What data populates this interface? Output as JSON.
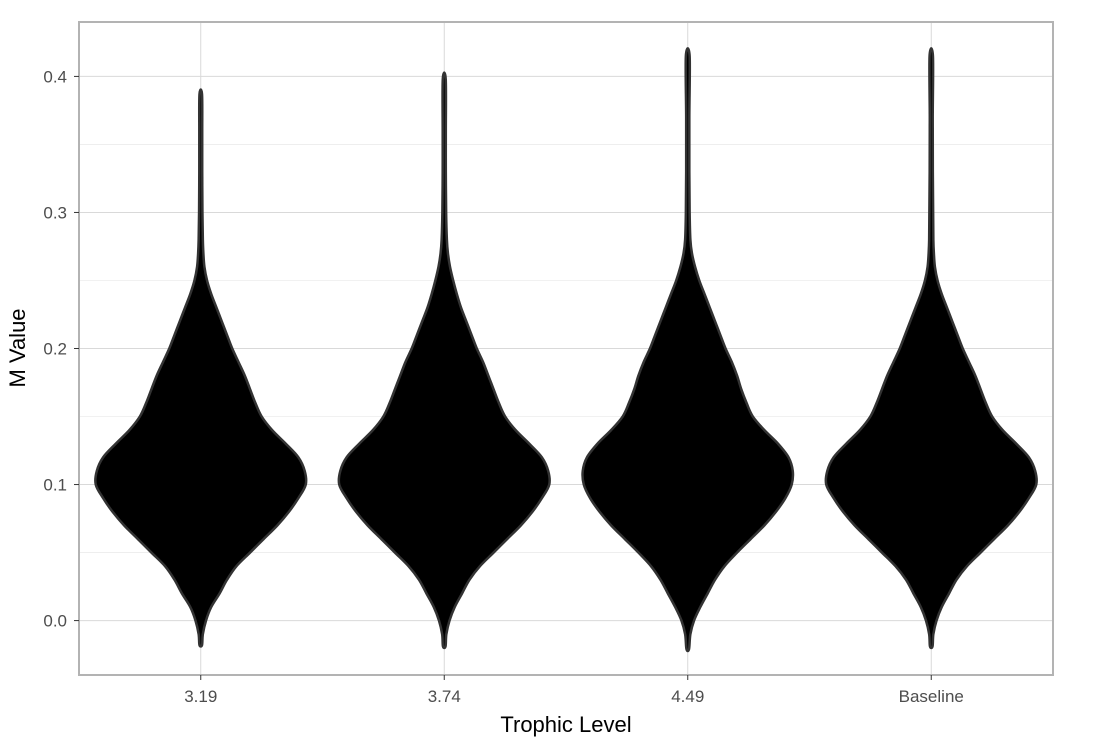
{
  "chart_data": {
    "type": "violin",
    "xlabel": "Trophic Level",
    "ylabel": "M  Value",
    "ylim": [
      -0.04,
      0.44
    ],
    "yticks": [
      0.0,
      0.1,
      0.2,
      0.3,
      0.4
    ],
    "ytick_labels": [
      "0.0",
      "0.1",
      "0.2",
      "0.3",
      "0.4"
    ],
    "categories": [
      "3.19",
      "3.74",
      "4.49",
      "Baseline"
    ],
    "fill_color": "#000000",
    "outline_color": "#333333",
    "grid": true,
    "legend": "none",
    "violins": [
      {
        "category": "3.19",
        "min": -0.018,
        "max": 0.387,
        "density": [
          [
            -0.018,
            0.005
          ],
          [
            -0.01,
            0.02
          ],
          [
            0.0,
            0.05
          ],
          [
            0.01,
            0.1
          ],
          [
            0.02,
            0.18
          ],
          [
            0.03,
            0.25
          ],
          [
            0.04,
            0.34
          ],
          [
            0.05,
            0.47
          ],
          [
            0.06,
            0.6
          ],
          [
            0.07,
            0.73
          ],
          [
            0.08,
            0.84
          ],
          [
            0.09,
            0.93
          ],
          [
            0.1,
            1.0
          ],
          [
            0.11,
            0.99
          ],
          [
            0.12,
            0.93
          ],
          [
            0.13,
            0.81
          ],
          [
            0.14,
            0.68
          ],
          [
            0.15,
            0.58
          ],
          [
            0.16,
            0.52
          ],
          [
            0.17,
            0.47
          ],
          [
            0.18,
            0.42
          ],
          [
            0.19,
            0.36
          ],
          [
            0.2,
            0.3
          ],
          [
            0.21,
            0.25
          ],
          [
            0.22,
            0.2
          ],
          [
            0.23,
            0.15
          ],
          [
            0.24,
            0.1
          ],
          [
            0.25,
            0.06
          ],
          [
            0.26,
            0.035
          ],
          [
            0.27,
            0.025
          ],
          [
            0.28,
            0.02
          ],
          [
            0.3,
            0.016
          ],
          [
            0.33,
            0.014
          ],
          [
            0.36,
            0.014
          ],
          [
            0.387,
            0.012
          ]
        ]
      },
      {
        "category": "3.74",
        "min": -0.019,
        "max": 0.398,
        "density": [
          [
            -0.019,
            0.005
          ],
          [
            -0.01,
            0.02
          ],
          [
            0.0,
            0.05
          ],
          [
            0.01,
            0.1
          ],
          [
            0.02,
            0.17
          ],
          [
            0.03,
            0.24
          ],
          [
            0.04,
            0.34
          ],
          [
            0.05,
            0.47
          ],
          [
            0.06,
            0.6
          ],
          [
            0.07,
            0.73
          ],
          [
            0.08,
            0.84
          ],
          [
            0.09,
            0.93
          ],
          [
            0.1,
            1.0
          ],
          [
            0.11,
            0.99
          ],
          [
            0.12,
            0.93
          ],
          [
            0.13,
            0.81
          ],
          [
            0.14,
            0.68
          ],
          [
            0.15,
            0.58
          ],
          [
            0.16,
            0.52
          ],
          [
            0.17,
            0.47
          ],
          [
            0.18,
            0.42
          ],
          [
            0.19,
            0.37
          ],
          [
            0.2,
            0.31
          ],
          [
            0.21,
            0.26
          ],
          [
            0.22,
            0.21
          ],
          [
            0.23,
            0.16
          ],
          [
            0.24,
            0.12
          ],
          [
            0.25,
            0.085
          ],
          [
            0.26,
            0.055
          ],
          [
            0.27,
            0.035
          ],
          [
            0.28,
            0.025
          ],
          [
            0.3,
            0.018
          ],
          [
            0.33,
            0.015
          ],
          [
            0.36,
            0.015
          ],
          [
            0.398,
            0.014
          ]
        ]
      },
      {
        "category": "4.49",
        "min": -0.021,
        "max": 0.415,
        "density": [
          [
            -0.021,
            0.005
          ],
          [
            -0.01,
            0.025
          ],
          [
            0.0,
            0.06
          ],
          [
            0.01,
            0.12
          ],
          [
            0.02,
            0.19
          ],
          [
            0.03,
            0.26
          ],
          [
            0.04,
            0.35
          ],
          [
            0.05,
            0.47
          ],
          [
            0.06,
            0.6
          ],
          [
            0.07,
            0.73
          ],
          [
            0.08,
            0.84
          ],
          [
            0.09,
            0.93
          ],
          [
            0.1,
            0.99
          ],
          [
            0.11,
            1.0
          ],
          [
            0.12,
            0.96
          ],
          [
            0.13,
            0.86
          ],
          [
            0.14,
            0.73
          ],
          [
            0.15,
            0.62
          ],
          [
            0.16,
            0.56
          ],
          [
            0.17,
            0.51
          ],
          [
            0.18,
            0.47
          ],
          [
            0.19,
            0.42
          ],
          [
            0.2,
            0.36
          ],
          [
            0.21,
            0.31
          ],
          [
            0.22,
            0.26
          ],
          [
            0.23,
            0.21
          ],
          [
            0.24,
            0.16
          ],
          [
            0.25,
            0.11
          ],
          [
            0.26,
            0.07
          ],
          [
            0.27,
            0.04
          ],
          [
            0.28,
            0.025
          ],
          [
            0.3,
            0.018
          ],
          [
            0.33,
            0.015
          ],
          [
            0.37,
            0.015
          ],
          [
            0.415,
            0.018
          ]
        ]
      },
      {
        "category": "Baseline",
        "min": -0.019,
        "max": 0.415,
        "density": [
          [
            -0.019,
            0.005
          ],
          [
            -0.01,
            0.02
          ],
          [
            0.0,
            0.05
          ],
          [
            0.01,
            0.1
          ],
          [
            0.02,
            0.17
          ],
          [
            0.03,
            0.24
          ],
          [
            0.04,
            0.34
          ],
          [
            0.05,
            0.47
          ],
          [
            0.06,
            0.6
          ],
          [
            0.07,
            0.73
          ],
          [
            0.08,
            0.84
          ],
          [
            0.09,
            0.93
          ],
          [
            0.1,
            1.0
          ],
          [
            0.11,
            0.99
          ],
          [
            0.12,
            0.93
          ],
          [
            0.13,
            0.81
          ],
          [
            0.14,
            0.68
          ],
          [
            0.15,
            0.58
          ],
          [
            0.16,
            0.52
          ],
          [
            0.17,
            0.47
          ],
          [
            0.18,
            0.42
          ],
          [
            0.19,
            0.36
          ],
          [
            0.2,
            0.3
          ],
          [
            0.21,
            0.25
          ],
          [
            0.22,
            0.2
          ],
          [
            0.23,
            0.15
          ],
          [
            0.24,
            0.1
          ],
          [
            0.25,
            0.06
          ],
          [
            0.26,
            0.035
          ],
          [
            0.27,
            0.025
          ],
          [
            0.28,
            0.02
          ],
          [
            0.3,
            0.018
          ],
          [
            0.33,
            0.015
          ],
          [
            0.37,
            0.014
          ],
          [
            0.415,
            0.016
          ]
        ]
      }
    ]
  }
}
